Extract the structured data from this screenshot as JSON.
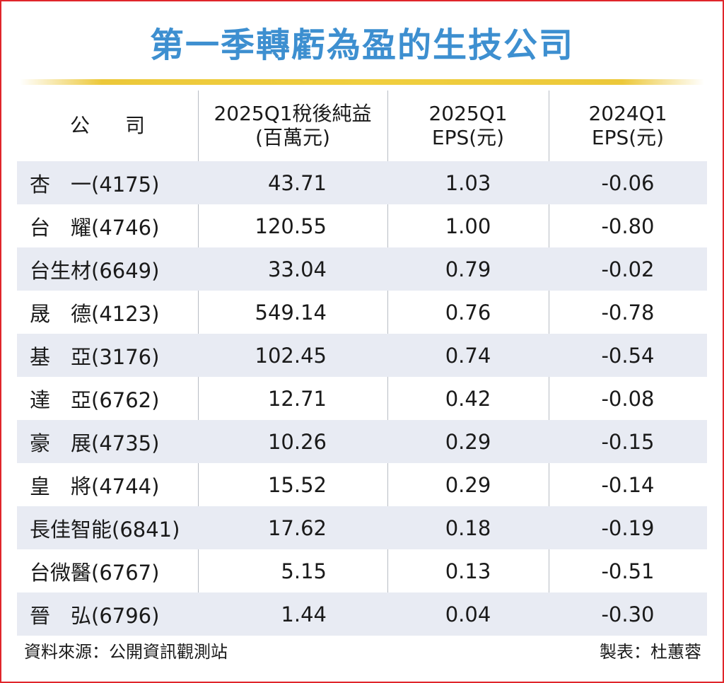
{
  "title": "第一季轉虧為盈的生技公司",
  "headers": {
    "company": "公司",
    "net_income": "2025Q1稅後純益(百萬元)",
    "net_income_line1": "2025Q1稅後純益",
    "net_income_line2": "(百萬元)",
    "eps_2025": "2025Q1EPS(元)",
    "eps_2025_line1": "2025Q1",
    "eps_2025_line2": "EPS(元)",
    "eps_2024": "2024Q1EPS(元)",
    "eps_2024_line1": "2024Q1",
    "eps_2024_line2": "EPS(元)"
  },
  "rows": [
    {
      "company": "杏　一(4175)",
      "net_income": "43.71",
      "eps_2025": "1.03",
      "eps_2024": "-0.06"
    },
    {
      "company": "台　耀(4746)",
      "net_income": "120.55",
      "eps_2025": "1.00",
      "eps_2024": "-0.80"
    },
    {
      "company": "台生材(6649)",
      "net_income": "33.04",
      "eps_2025": "0.79",
      "eps_2024": "-0.02"
    },
    {
      "company": "晟　德(4123)",
      "net_income": "549.14",
      "eps_2025": "0.76",
      "eps_2024": "-0.78"
    },
    {
      "company": "基　亞(3176)",
      "net_income": "102.45",
      "eps_2025": "0.74",
      "eps_2024": "-0.54"
    },
    {
      "company": "達　亞(6762)",
      "net_income": "12.71",
      "eps_2025": "0.42",
      "eps_2024": "-0.08"
    },
    {
      "company": "豪　展(4735)",
      "net_income": "10.26",
      "eps_2025": "0.29",
      "eps_2024": "-0.15"
    },
    {
      "company": "皇　將(4744)",
      "net_income": "15.52",
      "eps_2025": "0.29",
      "eps_2024": "-0.14"
    },
    {
      "company": "長佳智能(6841)",
      "net_income": "17.62",
      "eps_2025": "0.18",
      "eps_2024": "-0.19"
    },
    {
      "company": "台微醫(6767)",
      "net_income": "5.15",
      "eps_2025": "0.13",
      "eps_2024": "-0.51"
    },
    {
      "company": "晉　弘(6796)",
      "net_income": "1.44",
      "eps_2025": "0.04",
      "eps_2024": "-0.30"
    }
  ],
  "footer": {
    "source": "資料來源：公開資訊觀測站",
    "maker": "製表：杜蕙蓉"
  },
  "colors": {
    "title": "#3d8fd0",
    "border": "#e0262b",
    "row_shade": "#e8ebf3",
    "gold_bar": "#f0cf3f"
  },
  "chart_data": {
    "type": "table",
    "title": "第一季轉虧為盈的生技公司",
    "columns": [
      "公司",
      "2025Q1稅後純益(百萬元)",
      "2025Q1EPS(元)",
      "2024Q1EPS(元)"
    ],
    "rows": [
      [
        "杏　一(4175)",
        43.71,
        1.03,
        -0.06
      ],
      [
        "台　耀(4746)",
        120.55,
        1.0,
        -0.8
      ],
      [
        "台生材(6649)",
        33.04,
        0.79,
        -0.02
      ],
      [
        "晟　德(4123)",
        549.14,
        0.76,
        -0.78
      ],
      [
        "基　亞(3176)",
        102.45,
        0.74,
        -0.54
      ],
      [
        "達　亞(6762)",
        12.71,
        0.42,
        -0.08
      ],
      [
        "豪　展(4735)",
        10.26,
        0.29,
        -0.15
      ],
      [
        "皇　將(4744)",
        15.52,
        0.29,
        -0.14
      ],
      [
        "長佳智能(6841)",
        17.62,
        0.18,
        -0.19
      ],
      [
        "台微醫(6767)",
        5.15,
        0.13,
        -0.51
      ],
      [
        "晉　弘(6796)",
        1.44,
        0.04,
        -0.3
      ]
    ]
  }
}
